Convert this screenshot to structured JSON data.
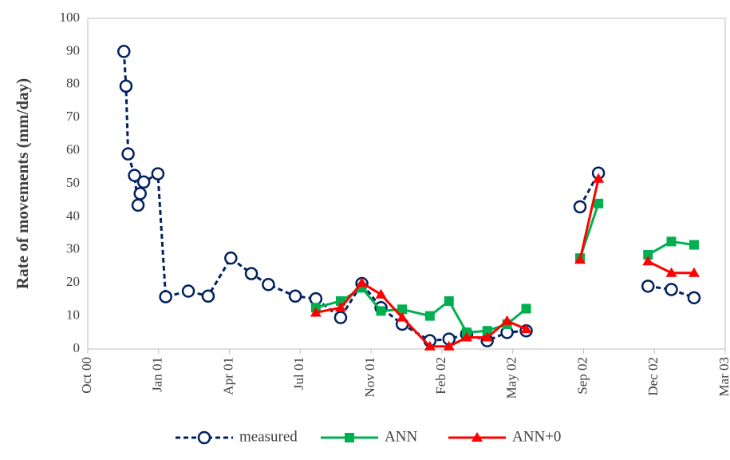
{
  "chart_data": {
    "type": "line",
    "y_label": "Rate of movements (mm/day)",
    "x": [
      51,
      54,
      57,
      66,
      71,
      74,
      79,
      99,
      110,
      142,
      170,
      202,
      231,
      255,
      293,
      322,
      357,
      387,
      414,
      444,
      483,
      510,
      535,
      564,
      592,
      619,
      null,
      695,
      721,
      null,
      791,
      824,
      856
    ],
    "series": [
      {
        "name": "measured",
        "color": "#002060",
        "marker": "circle",
        "dashed": true,
        "values": [
          90,
          79.5,
          59,
          52.5,
          43.5,
          47,
          50.5,
          53,
          15.8,
          17.5,
          16,
          27.5,
          22.8,
          19.5,
          16,
          15.2,
          9.5,
          19.8,
          12.5,
          7.5,
          2.5,
          3,
          4.5,
          2.5,
          5,
          5.5,
          null,
          43,
          53.2,
          null,
          19,
          18,
          15.5
        ]
      },
      {
        "name": "ANN",
        "color": "#00b050",
        "marker": "square",
        "dashed": false,
        "values": [
          null,
          null,
          null,
          null,
          null,
          null,
          null,
          null,
          null,
          null,
          null,
          null,
          null,
          null,
          null,
          12.5,
          14.5,
          18.5,
          11.5,
          12,
          10,
          14.5,
          5,
          5.5,
          7.5,
          12.2,
          null,
          27.5,
          44,
          null,
          28.5,
          32.5,
          31.5
        ]
      },
      {
        "name": "ANN+0",
        "color": "#ff0000",
        "marker": "triangle",
        "dashed": false,
        "values": [
          null,
          null,
          null,
          null,
          null,
          null,
          null,
          null,
          null,
          null,
          null,
          null,
          null,
          null,
          null,
          11,
          12.5,
          20,
          16.5,
          9.5,
          0.8,
          0.8,
          3.5,
          3.5,
          8.5,
          6,
          null,
          27,
          51.5,
          null,
          26.5,
          23,
          23
        ]
      }
    ],
    "xlim": [
      0,
      900
    ],
    "xticks": [
      {
        "value": 0,
        "label": "Oct 00"
      },
      {
        "value": 100,
        "label": "Jan 01"
      },
      {
        "value": 200,
        "label": "Apr 01"
      },
      {
        "value": 300,
        "label": "Jul 01"
      },
      {
        "value": 400,
        "label": "Nov 01"
      },
      {
        "value": 500,
        "label": "Feb 02"
      },
      {
        "value": 600,
        "label": "May 02"
      },
      {
        "value": 700,
        "label": "Sep 02"
      },
      {
        "value": 800,
        "label": "Dec 02"
      },
      {
        "value": 900,
        "label": "Mar 03"
      }
    ],
    "ylim": [
      0,
      100
    ],
    "yticks": [
      0,
      10,
      20,
      30,
      40,
      50,
      60,
      70,
      80,
      90,
      100
    ],
    "grid": false,
    "legend": "bottom"
  }
}
